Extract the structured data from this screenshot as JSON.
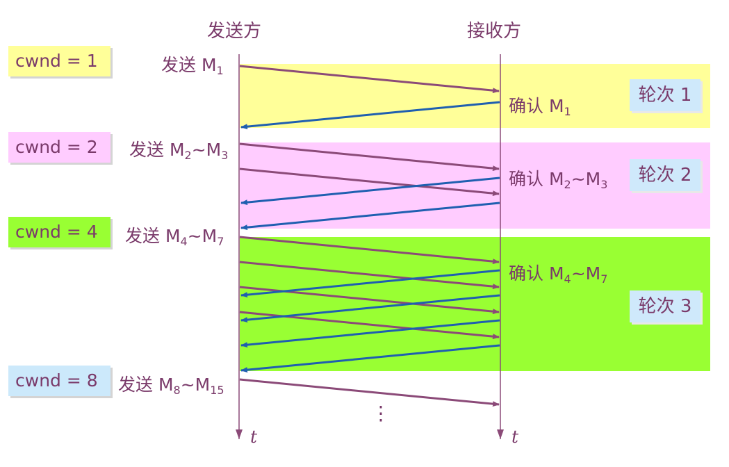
{
  "header": {
    "sender": "发送方",
    "receiver": "接收方"
  },
  "rounds": [
    {
      "cwnd": "cwnd = 1",
      "send_prefix": "发送 ",
      "send_a": "M",
      "send_a_sub": "1",
      "send_range": "",
      "send_b": "",
      "send_b_sub": "",
      "ack_prefix": "确认 ",
      "ack_a": "M",
      "ack_a_sub": "1",
      "ack_range": "",
      "ack_b": "",
      "ack_b_sub": "",
      "label": "轮次 1",
      "band_color": "#ffff99",
      "cwnd_color": "#ffff99"
    },
    {
      "cwnd": "cwnd = 2",
      "send_prefix": "发送 ",
      "send_a": "M",
      "send_a_sub": "2",
      "send_range": "~",
      "send_b": "M",
      "send_b_sub": "3",
      "ack_prefix": "确认 ",
      "ack_a": "M",
      "ack_a_sub": "2",
      "ack_range": "~",
      "ack_b": "M",
      "ack_b_sub": "3",
      "label": "轮次 2",
      "band_color": "#ffccff",
      "cwnd_color": "#ffccff"
    },
    {
      "cwnd": "cwnd = 4",
      "send_prefix": "发送 ",
      "send_a": "M",
      "send_a_sub": "4",
      "send_range": "~",
      "send_b": "M",
      "send_b_sub": "7",
      "ack_prefix": "确认 ",
      "ack_a": "M",
      "ack_a_sub": "4",
      "ack_range": "~",
      "ack_b": "M",
      "ack_b_sub": "7",
      "label": "轮次 3",
      "band_color": "#99ff33",
      "cwnd_color": "#99ff33"
    },
    {
      "cwnd": "cwnd = 8",
      "send_prefix": "发送 ",
      "send_a": "M",
      "send_a_sub": "8",
      "send_range": "~",
      "send_b": "M",
      "send_b_sub": "15",
      "cwnd_color": "#cce9fb"
    }
  ],
  "time_label": "t",
  "ellipsis": "⋮",
  "colors": {
    "send_arrow": "#8b4a78",
    "ack_arrow": "#1f5fb0",
    "timeline": "#8b4a78",
    "text": "#7a3a6a"
  }
}
